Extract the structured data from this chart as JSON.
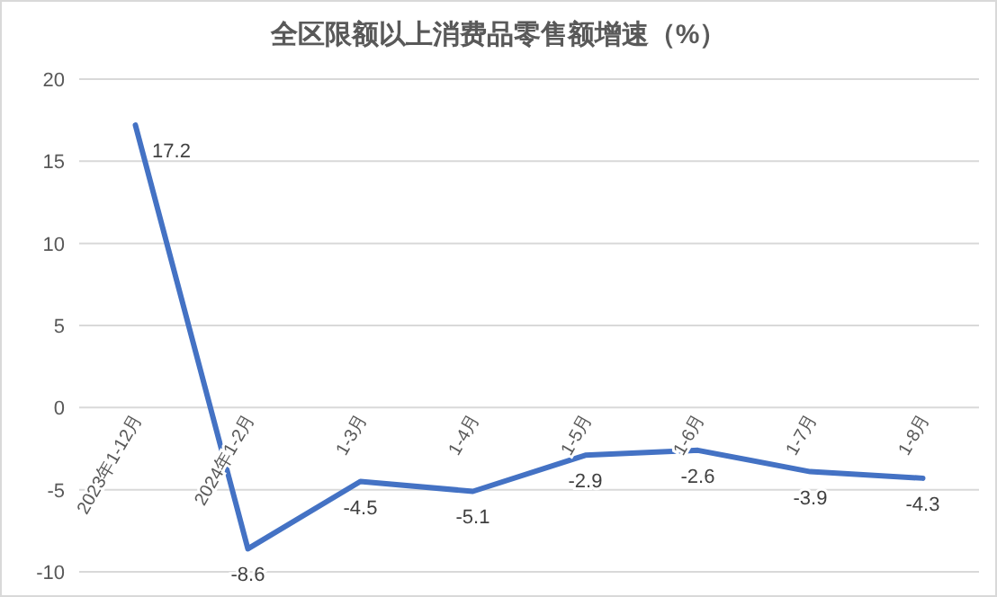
{
  "chart_data": {
    "type": "line",
    "title": "全区限额以上消费品零售额增速（%）",
    "categories": [
      "2023年1-12月",
      "2024年1-2月",
      "1-3月",
      "1-4月",
      "1-5月",
      "1-6月",
      "1-7月",
      "1-8月"
    ],
    "series": [
      {
        "color": "#4472c4",
        "values": [
          17.2,
          -8.6,
          -4.5,
          -5.1,
          -2.9,
          -2.6,
          -3.9,
          -4.3
        ]
      }
    ],
    "ylim": [
      -10,
      20
    ],
    "yticks": [
      -10,
      -5,
      0,
      5,
      10,
      15,
      20
    ],
    "grid": "y",
    "data_labels": true
  }
}
